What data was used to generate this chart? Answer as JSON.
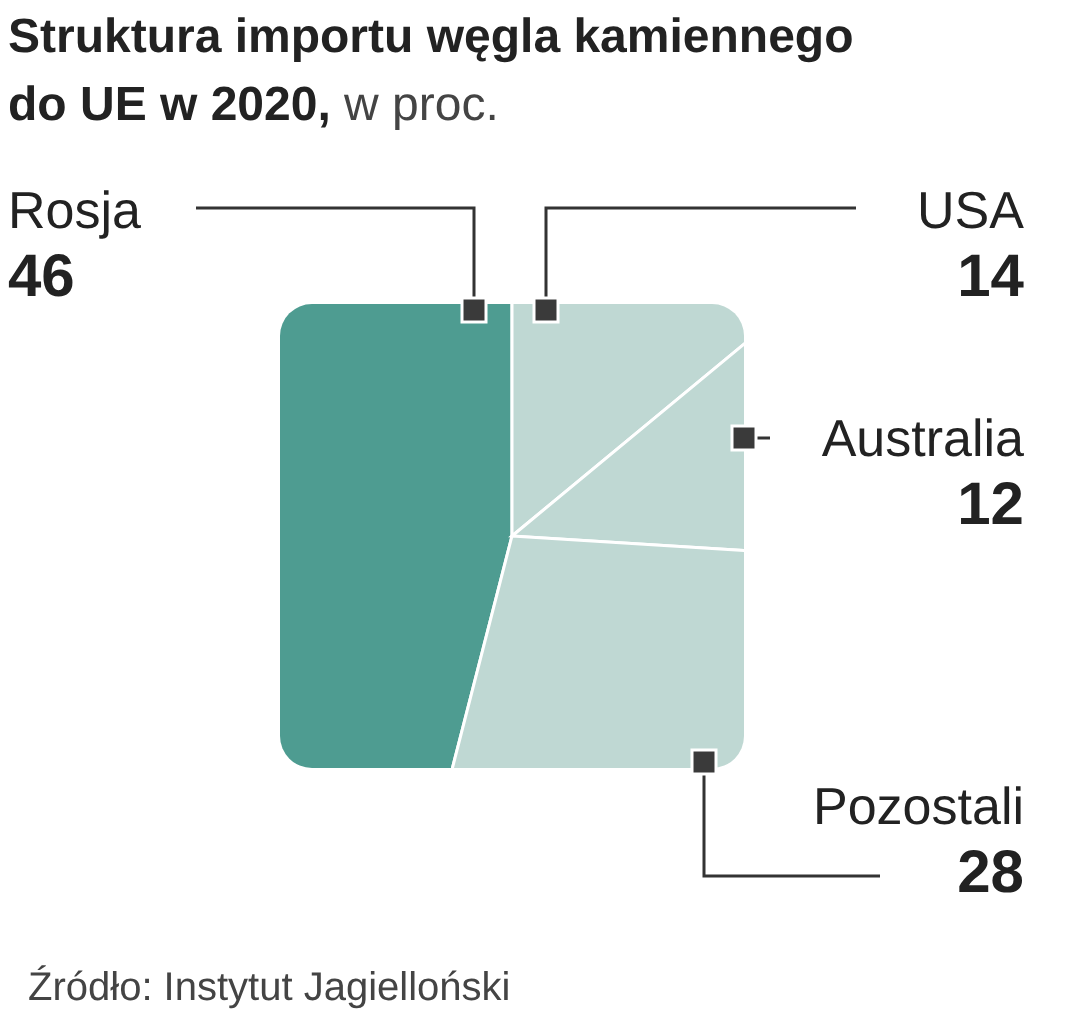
{
  "chart_data": {
    "type": "pie",
    "title": "Struktura importu węgla kamiennego do UE w 2020,",
    "subtitle": "w proc.",
    "categories": [
      "Rosja",
      "USA",
      "Australia",
      "Pozostali"
    ],
    "values": [
      46,
      14,
      12,
      28
    ],
    "colors": [
      "#4e9c91",
      "#bfd8d3",
      "#bfd8d3",
      "#bfd8d3"
    ],
    "data_labels": true,
    "annotations": [
      "Źródło: Instytut Jagielloński"
    ]
  }
}
